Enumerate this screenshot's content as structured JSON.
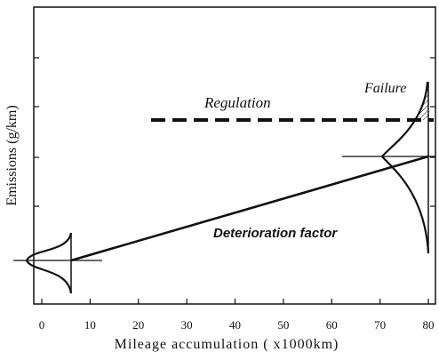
{
  "axes": {
    "x_label": "Mileage accumulation ( x1000km)",
    "y_label": "Emissions (g/km)",
    "x_tick_labels": [
      "0",
      "10",
      "20",
      "30",
      "40",
      "50",
      "60",
      "70",
      "80"
    ]
  },
  "annotations": {
    "regulation": "Regulation",
    "failure": "Failure",
    "deterioration": "Deterioration factor"
  }
}
